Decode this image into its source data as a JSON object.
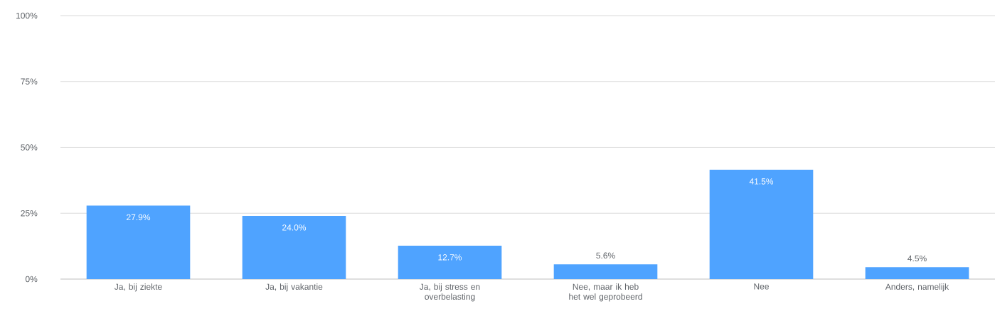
{
  "chart_data": {
    "type": "bar",
    "categories": [
      "Ja, bij ziekte",
      "Ja, bij vakantie",
      "Ja, bij stress en overbelasting",
      "Nee, maar ik heb het wel geprobeerd",
      "Nee",
      "Anders, namelijk"
    ],
    "values": [
      27.9,
      24.0,
      12.7,
      5.6,
      41.5,
      4.5
    ],
    "value_labels": [
      "27.9%",
      "24.0%",
      "12.7%",
      "5.6%",
      "41.5%",
      "4.5%"
    ],
    "color": "#4fa3ff",
    "ylim": [
      0,
      100
    ],
    "yticks": [
      {
        "value": 0,
        "label": "0%"
      },
      {
        "value": 25,
        "label": "25%"
      },
      {
        "value": 50,
        "label": "50%"
      },
      {
        "value": 75,
        "label": "75%"
      },
      {
        "value": 100,
        "label": "100%"
      }
    ],
    "grid": "y"
  }
}
